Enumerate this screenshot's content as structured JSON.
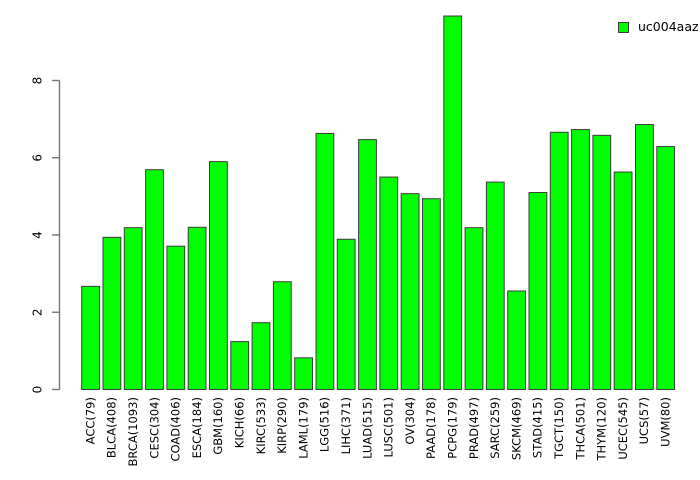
{
  "chart": {
    "legend": {
      "label": "uc004aaz",
      "swatch_color": "#00ff00"
    },
    "colors": {
      "bar_fill": "#00ff00",
      "bar_border": "#3c3c3c",
      "axis": "#757575",
      "text": "#000000",
      "background": "#ffffff"
    }
  },
  "chart_data": {
    "type": "bar",
    "title": "",
    "xlabel": "",
    "ylabel": "",
    "series_name": "uc004aaz",
    "categories": [
      "ACC(79)",
      "BLCA(408)",
      "BRCA(1093)",
      "CESC(304)",
      "COAD(406)",
      "ESCA(184)",
      "GBM(160)",
      "KICH(66)",
      "KIRC(533)",
      "KIRP(290)",
      "LAML(179)",
      "LGG(516)",
      "LIHC(371)",
      "LUAD(515)",
      "LUSC(501)",
      "OV(304)",
      "PAAD(178)",
      "PCPG(179)",
      "PRAD(497)",
      "SARC(259)",
      "SKCM(469)",
      "STAD(415)",
      "TGCT(150)",
      "THCA(501)",
      "THYM(120)",
      "UCEC(545)",
      "UCS(57)",
      "UVM(80)"
    ],
    "values": [
      2.67,
      3.94,
      4.19,
      5.69,
      3.71,
      4.2,
      5.9,
      1.24,
      1.73,
      2.79,
      0.82,
      6.63,
      3.89,
      6.47,
      5.5,
      5.07,
      4.94,
      9.67,
      4.19,
      5.37,
      2.55,
      5.1,
      6.66,
      6.73,
      6.58,
      5.63,
      6.86,
      6.29
    ],
    "ylim": [
      0,
      9.7
    ],
    "yticks": [
      0,
      2,
      4,
      6,
      8
    ],
    "grid": false,
    "legend_position": "top-right",
    "x_labels_rotated": true
  }
}
